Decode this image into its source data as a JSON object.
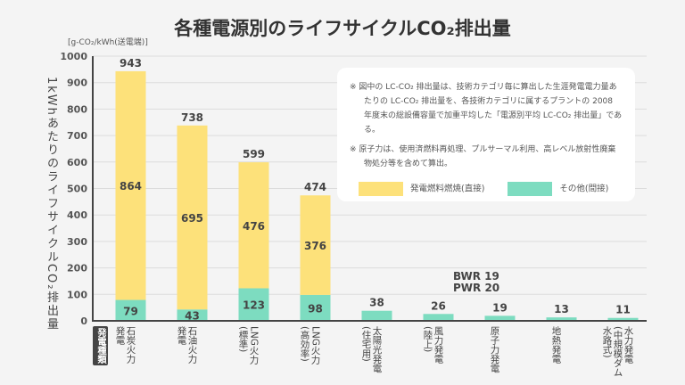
{
  "chart_data": {
    "type": "bar",
    "stacked": true,
    "title": "各種電源別のライフサイクルCO₂排出量",
    "unit_label": "[g-CO₂/kWh(送電端)]",
    "ylabel": "1kWhあたりのライフサイクルCO₂排出量",
    "ylim": [
      0,
      1000
    ],
    "yticks": [
      0,
      100,
      200,
      300,
      400,
      500,
      600,
      700,
      800,
      900,
      1000
    ],
    "grid": true,
    "category_header": "発電種類",
    "categories": [
      "石炭火力\n発電",
      "石油火力\n発電",
      "LNG火力\n(標準)",
      "LNG火力\n(高効率)",
      "太陽光発電\n(住宅用)",
      "風力発電\n(陸上)",
      "原子力発電",
      "地熱発電",
      "水力発電\n(中規模ダム\n水路式)"
    ],
    "series": [
      {
        "name": "その他(間接)",
        "color": "#7ddcc0",
        "values": [
          79,
          43,
          123,
          98,
          38,
          26,
          19,
          13,
          11
        ]
      },
      {
        "name": "発電燃料燃焼(直接)",
        "color": "#fde17a",
        "values": [
          864,
          695,
          476,
          376,
          0,
          0,
          0,
          0,
          0
        ]
      }
    ],
    "totals": [
      943,
      738,
      599,
      474,
      38,
      26,
      19,
      13,
      11
    ],
    "annotation": [
      "BWR 19",
      "PWR 20"
    ],
    "legend_position": "top-right"
  },
  "notes": [
    "※ 図中の LC-CO₂ 排出量は、技術カテゴリ毎に算出した生涯発電電力量あたりの LC-CO₂ 排出量を、各技術カテゴリに属するプラントの 2008 年度末の総設備容量で加重平均した「電源別平均 LC-CO₂ 排出量」である。",
    "※ 原子力は、使用済燃料再処理、プルサーマル利用、高レベル放射性廃棄物処分等を含めて算出。"
  ]
}
